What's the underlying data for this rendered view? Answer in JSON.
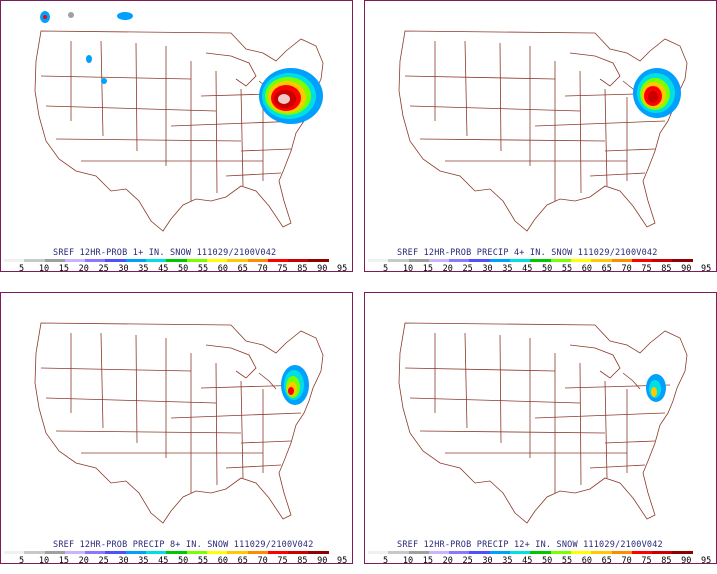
{
  "panels": [
    {
      "title": "SREF 12HR-PROB 1+ IN. SNOW 111029/2100V042"
    },
    {
      "title": "SREF 12HR-PROB PRECIP 4+ IN. SNOW 111029/2100V042"
    },
    {
      "title": "SREF 12HR-PROB PRECIP 8+ IN. SNOW 111029/2100V042"
    },
    {
      "title": "SREF 12HR-PROB PRECIP 12+ IN. SNOW 111029/2100V042"
    }
  ],
  "legend": {
    "ticks": [
      "5",
      "10",
      "15",
      "20",
      "25",
      "30",
      "35",
      "45",
      "50",
      "55",
      "60",
      "65",
      "70",
      "75",
      "85",
      "90",
      "95"
    ],
    "colors": [
      "#f0f0f0",
      "#c8c8c8",
      "#a0a0a0",
      "#c8b4ff",
      "#8c78ff",
      "#5050ff",
      "#00a0ff",
      "#00e0e0",
      "#00c800",
      "#78ff00",
      "#ffff00",
      "#ffc800",
      "#ff8c00",
      "#ff0000",
      "#c80000",
      "#900000",
      "#ffffff"
    ]
  },
  "colors": {
    "map_lines": "#8b3a2a",
    "frame": "#7a1d5a",
    "title": "#2a2a7a"
  },
  "map_data": {
    "region": "Contiguous United States",
    "variable": "12-hour snowfall probability (%)",
    "valid": "111029/2100V042",
    "thresholds": [
      "1+ IN.",
      "4+ IN.",
      "8+ IN.",
      "12+ IN."
    ]
  }
}
